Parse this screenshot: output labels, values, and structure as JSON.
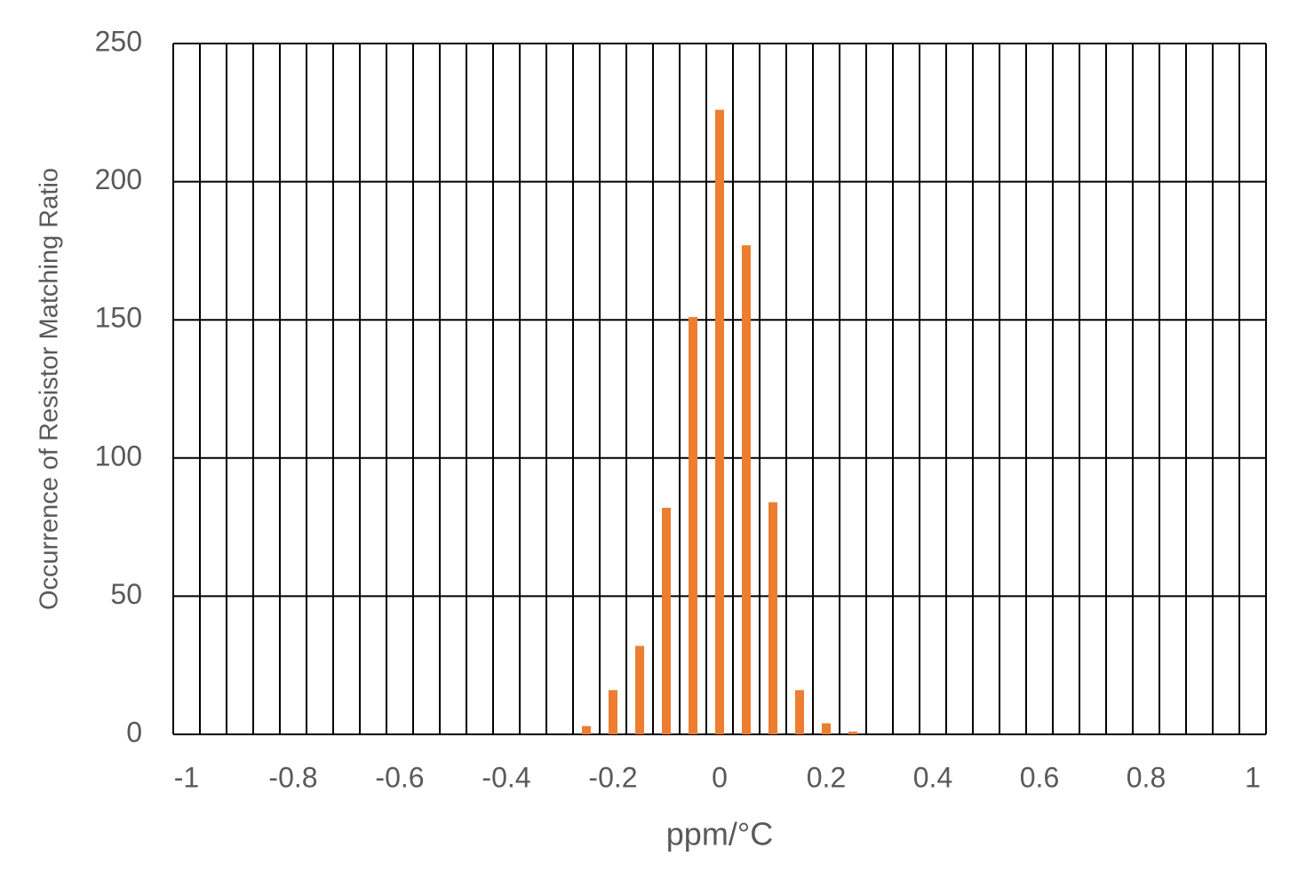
{
  "chart_data": {
    "type": "bar",
    "x_label": "ppm/°C",
    "y_label": "Occurrence of Resistor Matching Ratio",
    "categories": [
      "-1",
      null,
      null,
      null,
      "-0.8",
      null,
      null,
      null,
      "-0.6",
      null,
      null,
      null,
      "-0.4",
      null,
      null,
      null,
      "-0.2",
      null,
      null,
      null,
      "0",
      null,
      null,
      null,
      "0.2",
      null,
      null,
      null,
      "0.4",
      null,
      null,
      null,
      "0.6",
      null,
      null,
      null,
      "0.8",
      null,
      null,
      null,
      "1"
    ],
    "values": [
      0,
      0,
      0,
      0,
      0,
      0,
      0,
      0,
      0,
      0,
      0,
      0,
      0,
      0,
      0,
      3,
      16,
      32,
      82,
      151,
      226,
      177,
      84,
      16,
      4,
      1,
      0,
      0,
      0,
      0,
      0,
      0,
      0,
      0,
      0,
      0,
      0,
      0,
      0,
      0,
      0
    ],
    "color": "#ed7d31",
    "ylim": [
      0,
      250
    ],
    "yticks": [
      0,
      50,
      100,
      150,
      200,
      250
    ],
    "grid": true
  }
}
